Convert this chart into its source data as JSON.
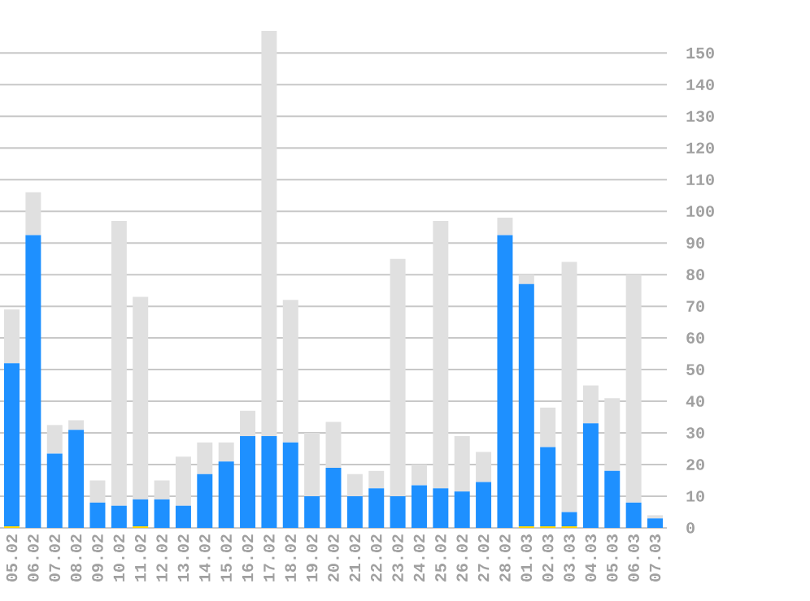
{
  "chart_data": {
    "type": "bar",
    "stacked": true,
    "categories": [
      "05.02",
      "06.02",
      "07.02",
      "08.02",
      "09.02",
      "10.02",
      "11.02",
      "12.02",
      "13.02",
      "14.02",
      "15.02",
      "16.02",
      "17.02",
      "18.02",
      "19.02",
      "20.02",
      "21.02",
      "22.02",
      "23.02",
      "24.02",
      "25.02",
      "26.02",
      "27.02",
      "28.02",
      "01.03",
      "02.03",
      "03.03",
      "04.03",
      "05.03",
      "06.03",
      "07.03"
    ],
    "series": [
      {
        "color": "#ffd700",
        "values": [
          0.5,
          null,
          null,
          null,
          null,
          null,
          0.5,
          null,
          null,
          null,
          null,
          null,
          null,
          null,
          null,
          null,
          null,
          null,
          null,
          null,
          null,
          null,
          null,
          null,
          0.5,
          0.5,
          0.5,
          null,
          null,
          null,
          null
        ]
      },
      {
        "color": "#1e90ff",
        "values": [
          51.5,
          92.5,
          23.5,
          31,
          8,
          7,
          8.5,
          9,
          7,
          17,
          21,
          29,
          29,
          27,
          10,
          19,
          10,
          12.5,
          10,
          13.5,
          12.5,
          11.5,
          14.5,
          92.5,
          76.5,
          25,
          4.5,
          33,
          18,
          8,
          3
        ]
      },
      {
        "color": "#e0e0e0",
        "values": [
          17,
          13.5,
          9,
          3,
          7,
          90,
          64,
          6,
          15.5,
          10,
          6,
          8,
          128,
          45,
          20,
          14.5,
          7,
          5.5,
          75,
          6.5,
          84.5,
          17.5,
          9.5,
          5.5,
          3,
          12.5,
          79,
          12,
          23,
          72,
          1
        ]
      }
    ],
    "ylim": [
      0,
      157
    ],
    "yticks": [
      0,
      10,
      20,
      30,
      40,
      50,
      60,
      70,
      80,
      90,
      100,
      110,
      120,
      130,
      140,
      150
    ],
    "grid": "y"
  }
}
